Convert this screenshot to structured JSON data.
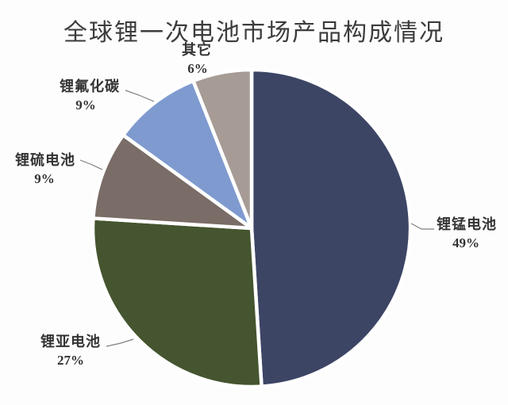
{
  "chart_data": {
    "type": "pie",
    "title": "全球锂一次电池市场产品构成情况",
    "slices": [
      {
        "label": "锂锰电池",
        "value": 49,
        "display": "49%",
        "color": "#3d4565"
      },
      {
        "label": "锂亚电池",
        "value": 27,
        "display": "27%",
        "color": "#45552f"
      },
      {
        "label": "锂硫电池",
        "value": 9,
        "display": "9%",
        "color": "#7a6c66"
      },
      {
        "label": "锂氟化碳",
        "value": 9,
        "display": "9%",
        "color": "#7e9acf"
      },
      {
        "label": "其它",
        "value": 6,
        "display": "6%",
        "color": "#a69c95"
      }
    ],
    "start_angle_deg": 0,
    "direction": "clockwise",
    "legend": "none",
    "labels_position": "outside-with-leader-lines"
  },
  "colors": {
    "background": "#fdfdfd",
    "title_text": "#3c3c3c",
    "label_text": "#333333",
    "leader_line": "#808080",
    "slice_border": "#ffffff"
  }
}
